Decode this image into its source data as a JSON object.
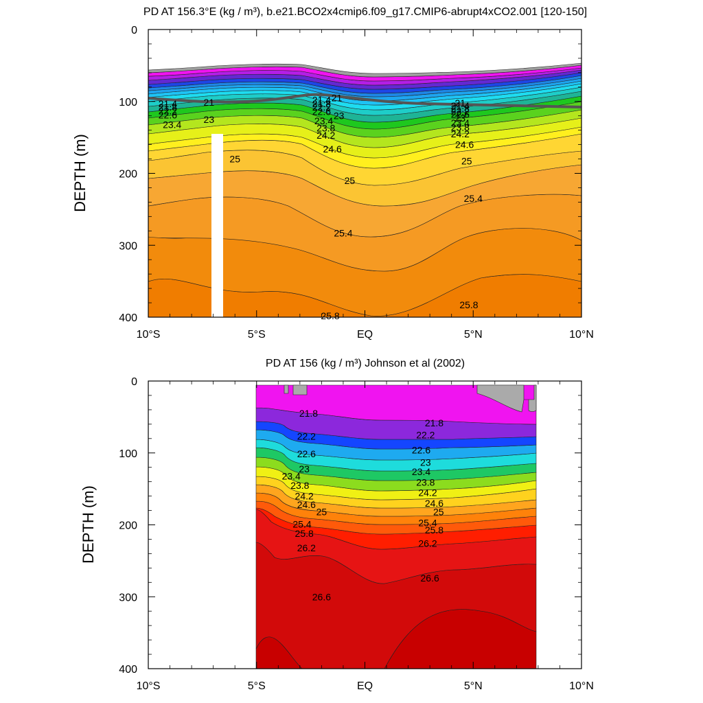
{
  "chart_data": [
    {
      "type": "contour",
      "title": "PD AT 156.3°E (kg / m³), b.e21.BCO2x4cmip6.f09_g17.CMIP6-abrupt4xCO2.001 [120-150]",
      "ylabel": "DEPTH (m)",
      "xlabel": "",
      "x_tick_labels": [
        "10°S",
        "5°S",
        "EQ",
        "5°N",
        "10°N"
      ],
      "y_tick_labels": [
        "0",
        "100",
        "200",
        "300",
        "400"
      ],
      "xlim": [
        -10,
        10
      ],
      "ylim": [
        0,
        400
      ],
      "y_inverted": true,
      "contour_labels": [
        {
          "text": "21",
          "x": -7.2,
          "y": 101
        },
        {
          "text": "21.4",
          "x": -9.1,
          "y": 103
        },
        {
          "text": "21.8",
          "x": -9.1,
          "y": 108
        },
        {
          "text": "22.2",
          "x": -9.1,
          "y": 113
        },
        {
          "text": "22.6",
          "x": -9.1,
          "y": 119
        },
        {
          "text": "23",
          "x": -7.2,
          "y": 125
        },
        {
          "text": "23.4",
          "x": -8.9,
          "y": 132
        },
        {
          "text": "25",
          "x": -6.0,
          "y": 180
        },
        {
          "text": "21",
          "x": -1.3,
          "y": 95
        },
        {
          "text": "21.4",
          "x": -2.0,
          "y": 98
        },
        {
          "text": "21.8",
          "x": -2.0,
          "y": 103
        },
        {
          "text": "22.2",
          "x": -2.0,
          "y": 108
        },
        {
          "text": "22.6",
          "x": -2.0,
          "y": 114
        },
        {
          "text": "23",
          "x": -1.2,
          "y": 120
        },
        {
          "text": "23.4",
          "x": -1.9,
          "y": 127
        },
        {
          "text": "23.8",
          "x": -1.8,
          "y": 137
        },
        {
          "text": "24.2",
          "x": -1.8,
          "y": 147
        },
        {
          "text": "24.6",
          "x": -1.5,
          "y": 166
        },
        {
          "text": "25",
          "x": -0.7,
          "y": 210
        },
        {
          "text": "25.4",
          "x": -1.0,
          "y": 283
        },
        {
          "text": "25.8",
          "x": -1.6,
          "y": 398
        },
        {
          "text": "21",
          "x": 4.4,
          "y": 102
        },
        {
          "text": "21.4",
          "x": 4.4,
          "y": 106
        },
        {
          "text": "21.8",
          "x": 4.4,
          "y": 110
        },
        {
          "text": "22.2",
          "x": 4.4,
          "y": 114
        },
        {
          "text": "22.6",
          "x": 4.4,
          "y": 118
        },
        {
          "text": "23",
          "x": 4.4,
          "y": 123
        },
        {
          "text": "23.4",
          "x": 4.4,
          "y": 130
        },
        {
          "text": "23.8",
          "x": 4.4,
          "y": 136
        },
        {
          "text": "24.2",
          "x": 4.4,
          "y": 145
        },
        {
          "text": "24.6",
          "x": 4.6,
          "y": 160
        },
        {
          "text": "25",
          "x": 4.7,
          "y": 183
        },
        {
          "text": "25.4",
          "x": 5.0,
          "y": 235
        },
        {
          "text": "25.8",
          "x": 4.8,
          "y": 383
        }
      ]
    },
    {
      "type": "contour",
      "title": "PD AT 156 (kg / m³) Johnson et al (2002)",
      "ylabel": "DEPTH (m)",
      "xlabel": "",
      "x_tick_labels": [
        "10°S",
        "5°S",
        "EQ",
        "5°N",
        "10°N"
      ],
      "y_tick_labels": [
        "0",
        "100",
        "200",
        "300",
        "400"
      ],
      "xlim": [
        -10,
        10
      ],
      "ylim": [
        0,
        400
      ],
      "y_inverted": true,
      "data_extent_x": [
        -5,
        8
      ],
      "contour_labels": [
        {
          "text": "21.8",
          "x": -2.6,
          "y": 45
        },
        {
          "text": "22.2",
          "x": -2.7,
          "y": 77
        },
        {
          "text": "22.6",
          "x": -2.7,
          "y": 101
        },
        {
          "text": "23",
          "x": -2.8,
          "y": 122
        },
        {
          "text": "23.4",
          "x": -3.4,
          "y": 132
        },
        {
          "text": "23.8",
          "x": -3.0,
          "y": 145
        },
        {
          "text": "24.2",
          "x": -2.8,
          "y": 160
        },
        {
          "text": "24.6",
          "x": -2.7,
          "y": 172
        },
        {
          "text": "25",
          "x": -2.0,
          "y": 182
        },
        {
          "text": "25.4",
          "x": -2.9,
          "y": 199
        },
        {
          "text": "25.8",
          "x": -2.8,
          "y": 212
        },
        {
          "text": "26.2",
          "x": -2.7,
          "y": 232
        },
        {
          "text": "26.6",
          "x": -2.0,
          "y": 300
        },
        {
          "text": "21.8",
          "x": 3.2,
          "y": 58
        },
        {
          "text": "22.2",
          "x": 2.8,
          "y": 75
        },
        {
          "text": "22.6",
          "x": 2.6,
          "y": 96
        },
        {
          "text": "23",
          "x": 2.8,
          "y": 113
        },
        {
          "text": "23.4",
          "x": 2.6,
          "y": 126
        },
        {
          "text": "23.8",
          "x": 2.8,
          "y": 141
        },
        {
          "text": "24.2",
          "x": 2.9,
          "y": 155
        },
        {
          "text": "24.6",
          "x": 3.2,
          "y": 170
        },
        {
          "text": "25",
          "x": 3.4,
          "y": 182
        },
        {
          "text": "25.4",
          "x": 2.9,
          "y": 197
        },
        {
          "text": "25.8",
          "x": 3.2,
          "y": 207
        },
        {
          "text": "26.2",
          "x": 2.9,
          "y": 226
        },
        {
          "text": "26.6",
          "x": 3.0,
          "y": 274
        }
      ]
    }
  ]
}
